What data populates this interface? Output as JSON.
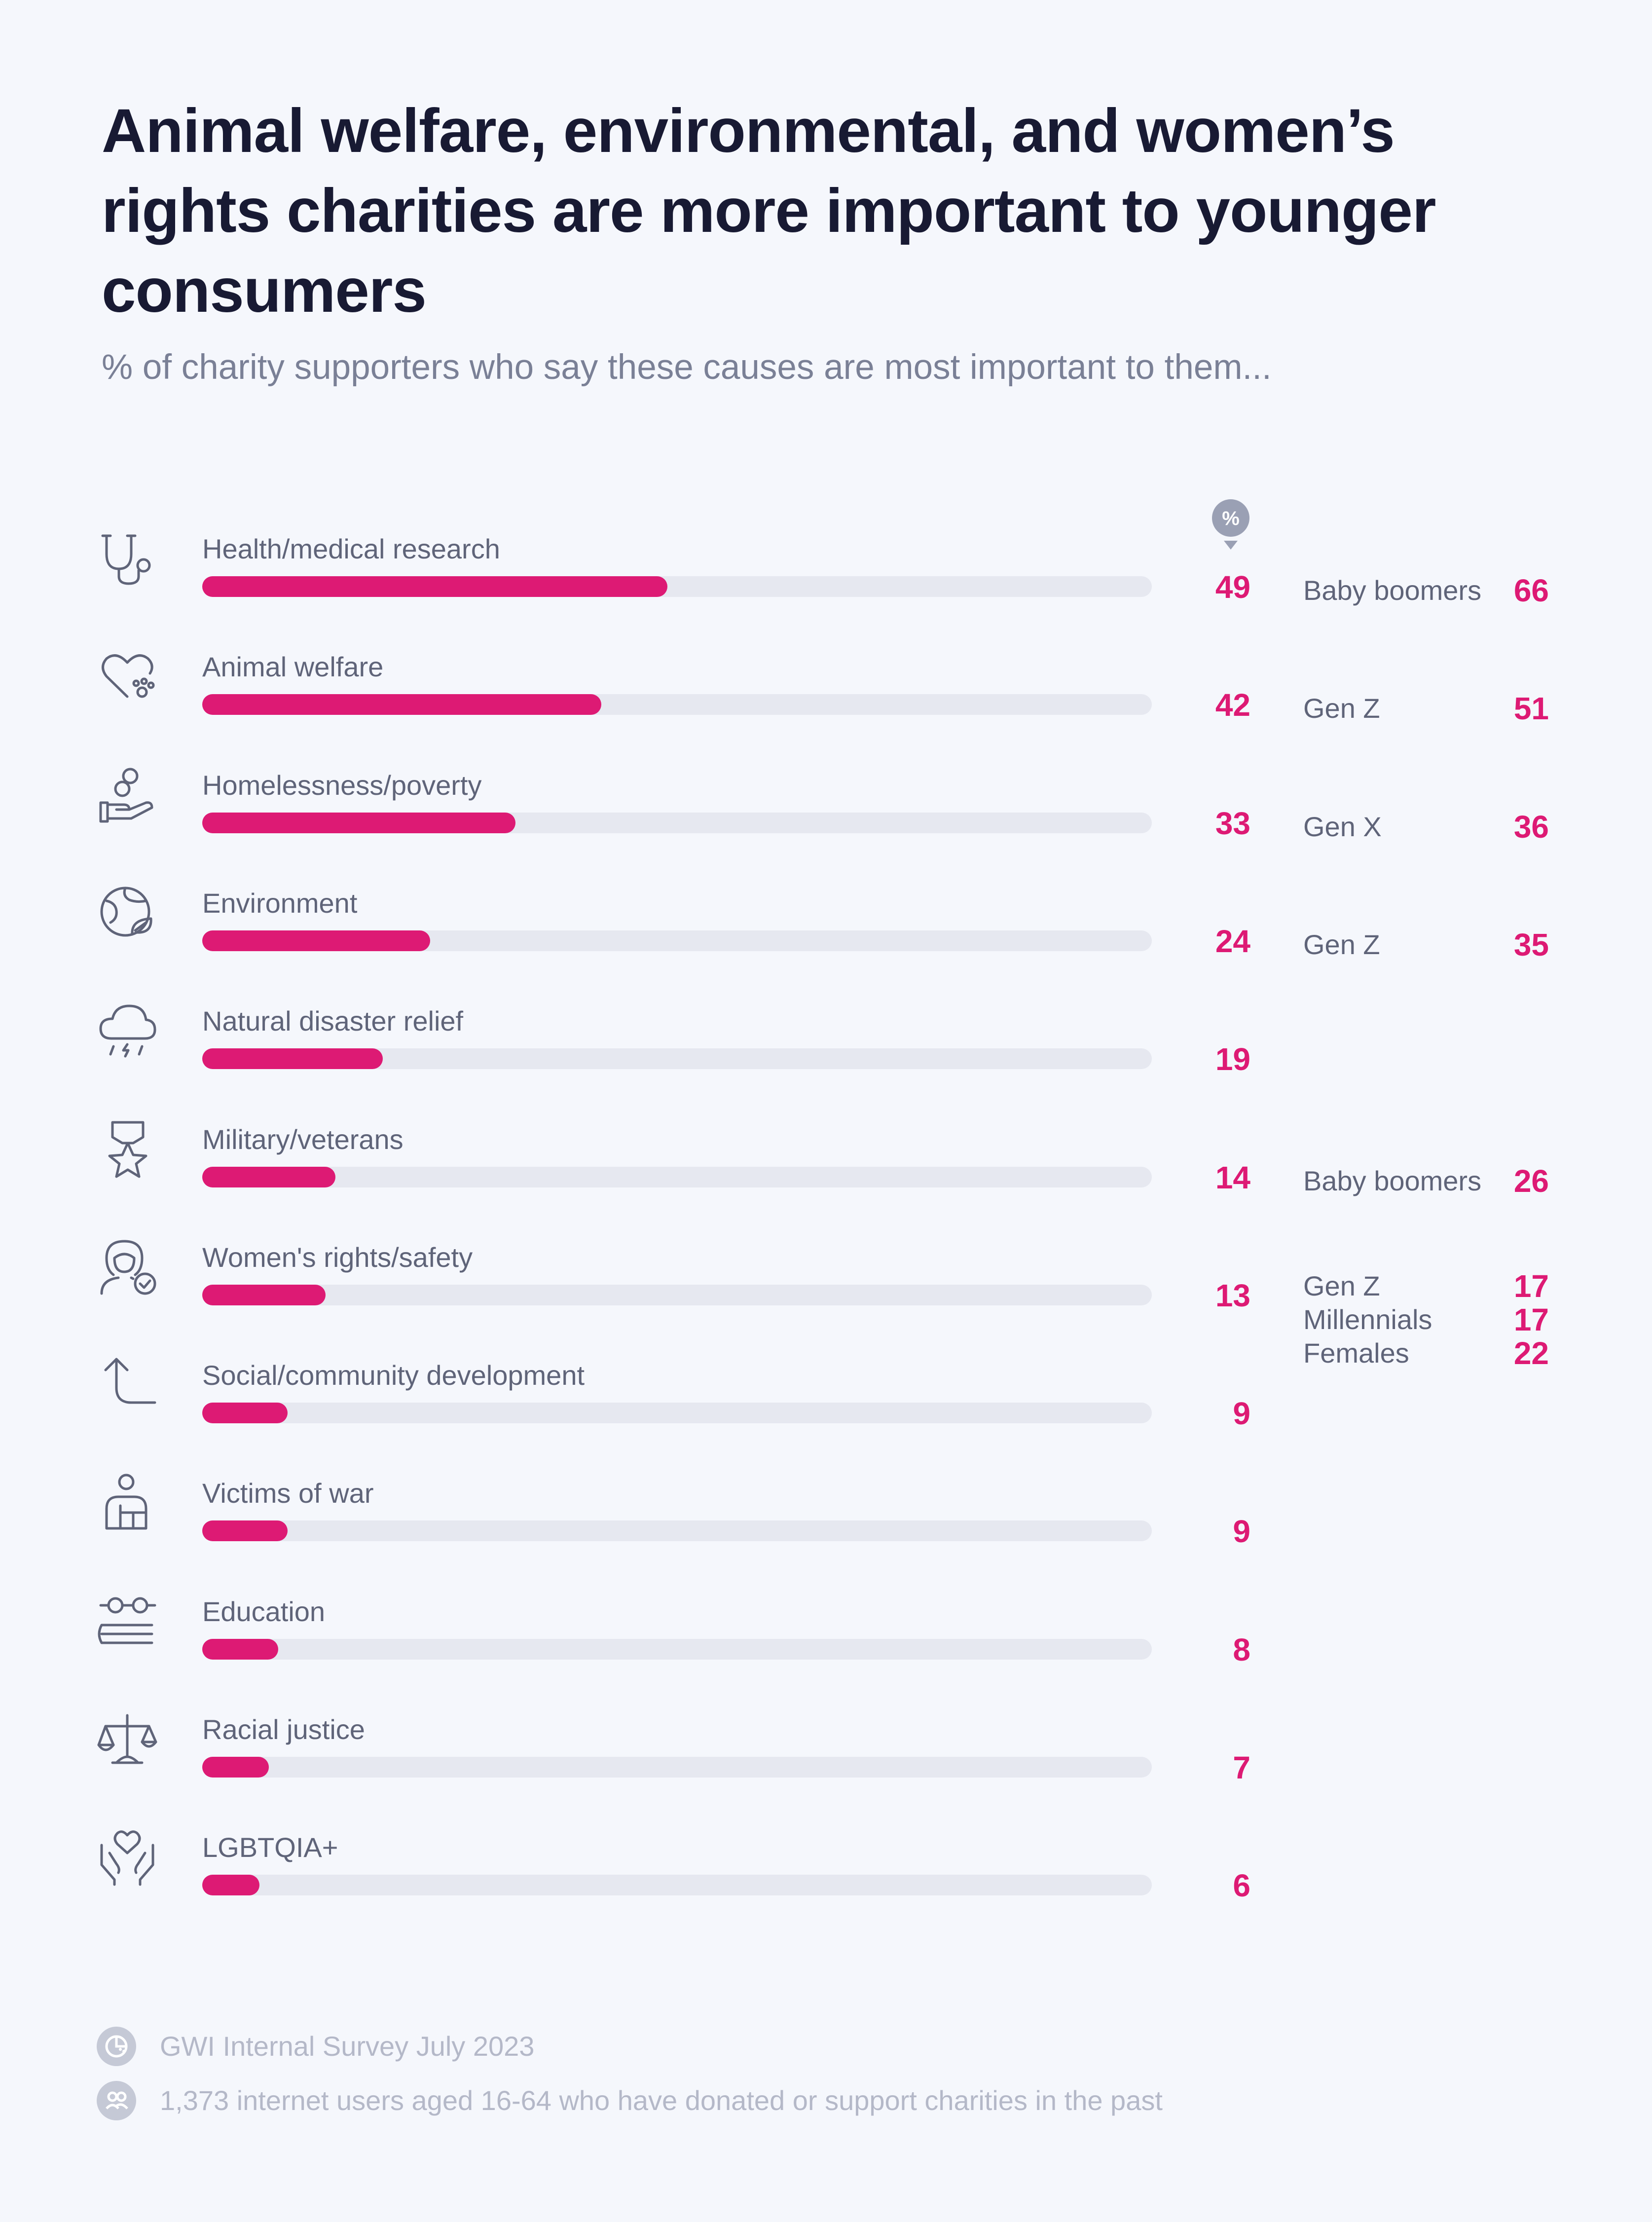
{
  "title": "Animal welfare, environmental, and women’s rights charities are more important to younger consumers",
  "subtitle": "% of charity supporters who say these causes are most important to them...",
  "pct_badge": "%",
  "colors": {
    "bar": "#dd1a74",
    "track": "#e6e8f0",
    "value": "#dd1a74",
    "background": "#f5f7fc"
  },
  "chart_data": {
    "type": "bar",
    "orientation": "horizontal",
    "xlim": [
      0,
      100
    ],
    "categories": [
      "Health/medical research",
      "Animal welfare",
      "Homelessness/poverty",
      "Environment",
      "Natural disaster relief",
      "Military/veterans",
      "Women's rights/safety",
      "Social/community development",
      "Victims of war",
      "Education",
      "Racial justice",
      "LGBTQIA+"
    ],
    "values": [
      49,
      42,
      33,
      24,
      19,
      14,
      13,
      9,
      9,
      8,
      7,
      6
    ],
    "icons": [
      "stethoscope-icon",
      "heart-paw-icon",
      "hand-coins-icon",
      "globe-leaf-icon",
      "storm-cloud-icon",
      "medal-star-icon",
      "woman-check-icon",
      "arrow-up-turn-icon",
      "person-injured-icon",
      "glasses-book-icon",
      "scales-icon",
      "hands-heart-icon"
    ],
    "highlights": [
      [
        {
          "group": "Baby boomers",
          "value": 66
        }
      ],
      [
        {
          "group": "Gen Z",
          "value": 51
        }
      ],
      [
        {
          "group": "Gen X",
          "value": 36
        }
      ],
      [
        {
          "group": "Gen Z",
          "value": 35
        }
      ],
      [],
      [
        {
          "group": "Baby boomers",
          "value": 26
        }
      ],
      [
        {
          "group": "Gen Z",
          "value": 17
        },
        {
          "group": "Millennials",
          "value": 17
        },
        {
          "group": "Females",
          "value": 22
        }
      ],
      [],
      [],
      [],
      [],
      []
    ]
  },
  "footer": {
    "source": "GWI Internal Survey July 2023",
    "sample": "1,373 internet users aged 16-64 who have donated or support charities in the past",
    "source_icon": "pie-chart-icon",
    "sample_icon": "people-icon"
  }
}
